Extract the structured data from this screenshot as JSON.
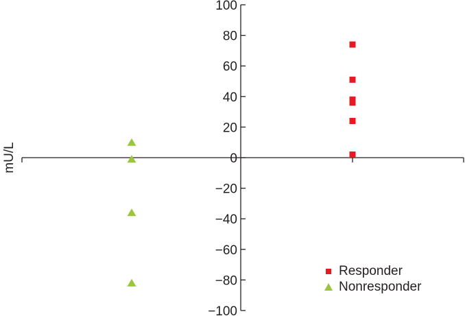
{
  "chart_data": {
    "type": "scatter",
    "title": "",
    "xlabel": "",
    "ylabel": "mU/L",
    "ylim": [
      -100,
      100
    ],
    "yticks": [
      100,
      80,
      60,
      40,
      20,
      0,
      -20,
      -40,
      -60,
      -80,
      -100
    ],
    "ytick_labels": [
      "100",
      "80",
      "60",
      "40",
      "20",
      "0",
      "−20",
      "−40",
      "−60",
      "−80",
      "−100"
    ],
    "grid": false,
    "legend_position": "lower right",
    "categories": [
      "Nonresponder",
      "Responder"
    ],
    "series": [
      {
        "name": "Responder",
        "marker": "square",
        "color": "#e31b23",
        "x_position": "right",
        "values": [
          74,
          51,
          38,
          36,
          24,
          2
        ]
      },
      {
        "name": "Nonresponder",
        "marker": "triangle",
        "color": "#9bc53d",
        "x_position": "left",
        "values": [
          10,
          -1,
          -36,
          -82
        ]
      }
    ]
  },
  "legend": {
    "items": [
      {
        "label": "Responder",
        "color": "#e31b23",
        "marker": "square"
      },
      {
        "label": "Nonresponder",
        "color": "#9bc53d",
        "marker": "triangle"
      }
    ]
  },
  "colors": {
    "axis": "#231f20",
    "responder": "#e31b23",
    "nonresponder": "#9bc53d"
  }
}
